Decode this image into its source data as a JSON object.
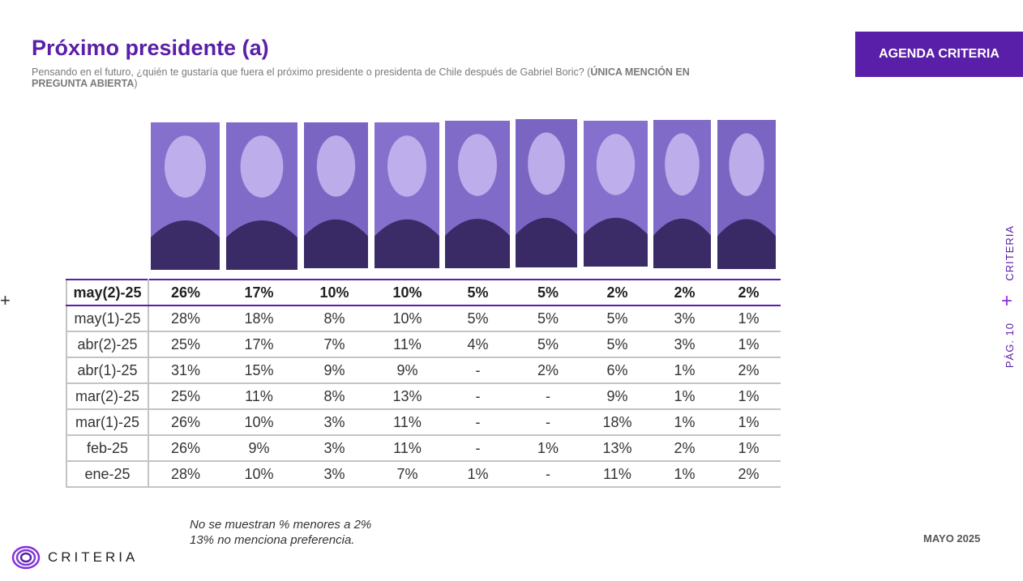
{
  "header": {
    "title": "Próximo presidente (a)",
    "question": "Pensando en el futuro, ¿quién te gustaría que fuera el próximo presidente o presidenta de Chile después de Gabriel Boric? (",
    "question_bold": "ÚNICA MENCIÓN EN PREGUNTA ABIERTA",
    "question_end": ")",
    "agenda_label": "AGENDA CRITERIA"
  },
  "photos": [
    "candidate-photo-1",
    "candidate-photo-2",
    "candidate-photo-3",
    "candidate-photo-4",
    "candidate-photo-5",
    "candidate-photo-6",
    "candidate-photo-7",
    "candidate-photo-8",
    "candidate-photo-9"
  ],
  "table": {
    "rows": [
      {
        "label": "may(2)-25",
        "values": [
          "26%",
          "17%",
          "10%",
          "10%",
          "5%",
          "5%",
          "2%",
          "2%",
          "2%"
        ]
      },
      {
        "label": "may(1)-25",
        "values": [
          "28%",
          "18%",
          "8%",
          "10%",
          "5%",
          "5%",
          "5%",
          "3%",
          "1%"
        ]
      },
      {
        "label": "abr(2)-25",
        "values": [
          "25%",
          "17%",
          "7%",
          "11%",
          "4%",
          "5%",
          "5%",
          "3%",
          "1%"
        ]
      },
      {
        "label": "abr(1)-25",
        "values": [
          "31%",
          "15%",
          "9%",
          "9%",
          "-",
          "2%",
          "6%",
          "1%",
          "2%"
        ]
      },
      {
        "label": "mar(2)-25",
        "values": [
          "25%",
          "11%",
          "8%",
          "13%",
          "-",
          "-",
          "9%",
          "1%",
          "1%"
        ]
      },
      {
        "label": "mar(1)-25",
        "values": [
          "26%",
          "10%",
          "3%",
          "11%",
          "-",
          "-",
          "18%",
          "1%",
          "1%"
        ]
      },
      {
        "label": "feb-25",
        "values": [
          "26%",
          "9%",
          "3%",
          "11%",
          "-",
          "1%",
          "13%",
          "2%",
          "1%"
        ]
      },
      {
        "label": "ene-25",
        "values": [
          "28%",
          "10%",
          "3%",
          "7%",
          "1%",
          "-",
          "11%",
          "1%",
          "2%"
        ]
      }
    ]
  },
  "footer": {
    "note_1": "No se muestran % menores a 2%",
    "note_2": "13% no menciona preferencia.",
    "logo_text": "CRITERIA",
    "date": "MAYO 2025"
  },
  "side": {
    "brand": "CRITERIA",
    "page": "PÁG. 10",
    "plus": "+"
  },
  "left_mark": "+",
  "colors": {
    "accent": "#5a1fa8",
    "photo_tint": "#8e7ad6",
    "plus_side": "#8a2be2"
  }
}
